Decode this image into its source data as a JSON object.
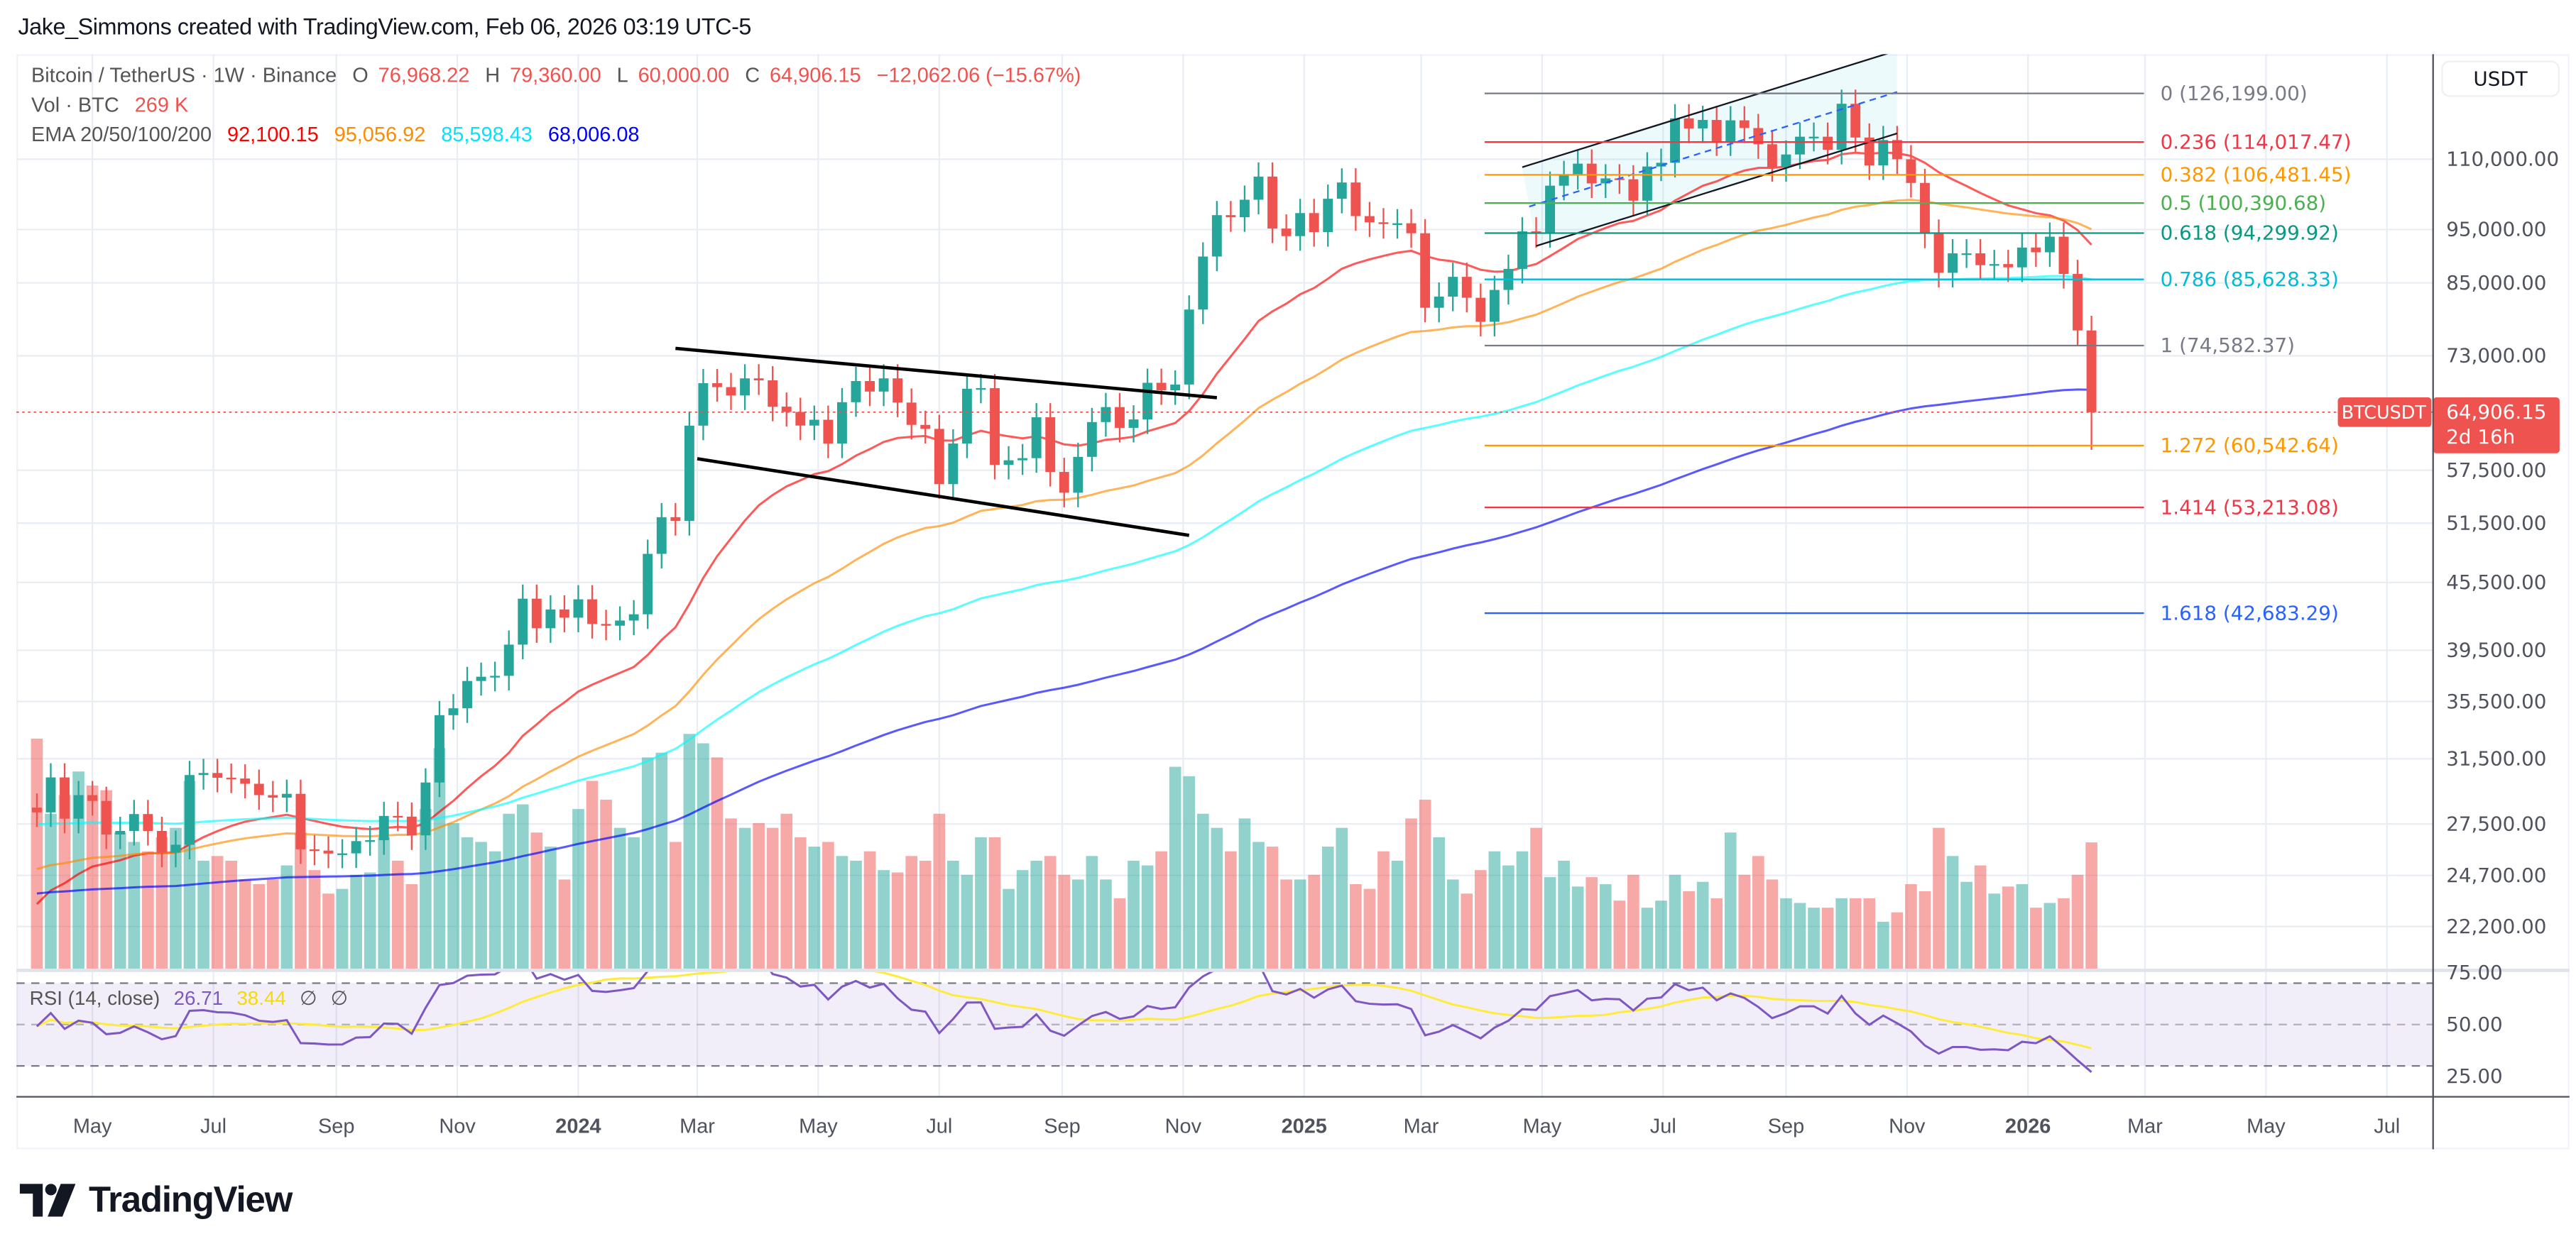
{
  "credit": "Jake_Simmons created with TradingView.com, Feb 06, 2026 03:19 UTC-5",
  "brand": "TradingView",
  "legend": {
    "symbol": "Bitcoin / TetherUS · 1W · Binance",
    "o_label": "O",
    "o": "76,968.22",
    "h_label": "H",
    "h": "79,360.00",
    "l_label": "L",
    "l": "60,000.00",
    "c_label": "C",
    "c": "64,906.15",
    "change": "−12,062.06 (−15.67%)",
    "vol_label": "Vol · BTC",
    "vol": "269 K",
    "ema_label": "EMA 20/50/100/200",
    "ema20": "92,100.15",
    "ema50": "95,056.92",
    "ema100": "85,598.43",
    "ema200": "68,006.08"
  },
  "rsi_legend": {
    "label": "RSI (14, close)",
    "rsi": "26.71",
    "ma": "38.44",
    "n1": "∅",
    "n2": "∅"
  },
  "currency": "USDT",
  "price_tag": {
    "symbol": "BTCUSDT",
    "price": "64,906.15",
    "countdown": "2d 16h"
  },
  "colors": {
    "up": "#26a69a",
    "down": "#ef5350",
    "ema20": "#ff0000",
    "ema50": "#ff8c00",
    "ema100": "#00ffff",
    "ema200": "#0000ff",
    "rsi": "#7e57c2",
    "rsi_ma": "#ffeb3b"
  },
  "chart_data": {
    "type": "candlestick",
    "scale": "log",
    "grid": true,
    "first_week": "2023-04-03",
    "interval": "1W",
    "close": [
      28170,
      30300,
      27800,
      29200,
      28850,
      26900,
      27100,
      28070,
      27100,
      25900,
      26330,
      30450,
      30580,
      30280,
      30230,
      29900,
      29200,
      29050,
      29280,
      26080,
      26010,
      25850,
      25860,
      26530,
      26580,
      27960,
      27920,
      26850,
      29980,
      34500,
      35000,
      37050,
      37380,
      37450,
      39970,
      43990,
      41360,
      43010,
      42280,
      43930,
      41730,
      41580,
      42030,
      42580,
      48300,
      52140,
      51730,
      63110,
      68950,
      68390,
      67210,
      69650,
      69360,
      65660,
      64940,
      63120,
      63890,
      60800,
      66270,
      69260,
      67760,
      69650,
      66220,
      63210,
      62680,
      55860,
      60800,
      68160,
      68250,
      58160,
      58710,
      58970,
      64220,
      57300,
      54870,
      59130,
      63580,
      65600,
      62820,
      63930,
      69010,
      67940,
      68760,
      80400,
      89800,
      97900,
      97470,
      101100,
      106100,
      95200,
      93710,
      98320,
      94500,
      101300,
      104800,
      97700,
      96450,
      96100,
      96250,
      94270,
      80700,
      82600,
      86080,
      82400,
      78370,
      83760,
      87520,
      94640,
      94300,
      104100,
      106450,
      109000,
      104600,
      105700,
      105500,
      100900,
      108350,
      109200,
      119800,
      117300,
      119400,
      114200,
      119300,
      117400,
      113500,
      108200,
      111100,
      115300,
      115300,
      112200,
      123500,
      115100,
      108600,
      114500,
      110000,
      104700,
      94200,
      86800,
      90400,
      90400,
      88200,
      88400,
      87800,
      91500,
      90600,
      93600,
      86600,
      76968.22,
      64906.15
    ],
    "first_open": 28450,
    "last": {
      "open": 76968.22,
      "high": 79360.0,
      "low": 60000.0,
      "close": 64906.15
    },
    "volume_k": [
      490,
      330,
      370,
      420,
      390,
      380,
      290,
      270,
      250,
      280,
      300,
      400,
      230,
      240,
      230,
      190,
      180,
      190,
      220,
      290,
      210,
      160,
      170,
      200,
      205,
      280,
      230,
      180,
      340,
      470,
      310,
      280,
      270,
      250,
      330,
      350,
      290,
      260,
      190,
      340,
      400,
      360,
      300,
      280,
      450,
      460,
      270,
      500,
      480,
      450,
      320,
      300,
      310,
      300,
      330,
      280,
      260,
      270,
      240,
      230,
      250,
      210,
      205,
      240,
      230,
      330,
      230,
      200,
      280,
      280,
      170,
      210,
      230,
      240,
      200,
      190,
      240,
      190,
      150,
      230,
      220,
      250,
      430,
      410,
      330,
      300,
      250,
      320,
      270,
      260,
      190,
      190,
      200,
      260,
      300,
      180,
      170,
      250,
      230,
      320,
      360,
      280,
      190,
      160,
      210,
      250,
      220,
      250,
      300,
      195,
      230,
      175,
      195,
      180,
      145,
      200,
      130,
      145,
      200,
      165,
      185,
      150,
      290,
      200,
      240,
      190,
      150,
      140,
      130,
      130,
      150,
      150,
      150,
      100,
      120,
      180,
      165,
      300,
      240,
      185,
      220,
      160,
      175,
      180,
      130,
      140,
      150,
      200,
      269
    ],
    "price_ticks": [
      "110,000.00",
      "95,000.00",
      "85,000.00",
      "73,000.00",
      "57,500.00",
      "51,500.00",
      "45,500.00",
      "39,500.00",
      "35,500.00",
      "31,500.00",
      "27,500.00",
      "24,700.00",
      "22,200.00"
    ],
    "price_tick_values": [
      110000,
      95000,
      85000,
      73000,
      57500,
      51500,
      45500,
      39500,
      35500,
      31500,
      27500,
      24700,
      22200
    ],
    "rsi_ticks": [
      "75.00",
      "50.00",
      "25.00"
    ],
    "rsi_tick_values": [
      75,
      50,
      25
    ],
    "rsi_bands": [
      70,
      50,
      30
    ],
    "x_ticks": [
      {
        "label": "May",
        "date": "2023-05-01"
      },
      {
        "label": "Jul",
        "date": "2023-07-01"
      },
      {
        "label": "Sep",
        "date": "2023-09-01"
      },
      {
        "label": "Nov",
        "date": "2023-11-01"
      },
      {
        "label": "2024",
        "date": "2024-01-01",
        "bold": true
      },
      {
        "label": "Mar",
        "date": "2024-03-01"
      },
      {
        "label": "May",
        "date": "2024-05-01"
      },
      {
        "label": "Jul",
        "date": "2024-07-01"
      },
      {
        "label": "Sep",
        "date": "2024-09-01"
      },
      {
        "label": "Nov",
        "date": "2024-11-01"
      },
      {
        "label": "2025",
        "date": "2025-01-01",
        "bold": true
      },
      {
        "label": "Mar",
        "date": "2025-03-01"
      },
      {
        "label": "May",
        "date": "2025-05-01"
      },
      {
        "label": "Jul",
        "date": "2025-07-01"
      },
      {
        "label": "Sep",
        "date": "2025-09-01"
      },
      {
        "label": "Nov",
        "date": "2025-11-01"
      },
      {
        "label": "2026",
        "date": "2026-01-01",
        "bold": true
      },
      {
        "label": "Mar",
        "date": "2026-03-01"
      },
      {
        "label": "May",
        "date": "2026-05-01"
      },
      {
        "label": "Jul",
        "date": "2026-07-01"
      }
    ],
    "fibonacci": {
      "start_date": "2025-04-02",
      "levels": [
        {
          "level": "0",
          "price": 126199.0,
          "text": "0 (126,199.00)",
          "color": "#787b86"
        },
        {
          "level": "0.236",
          "price": 114017.47,
          "text": "0.236 (114,017.47)",
          "color": "#f23645"
        },
        {
          "level": "0.382",
          "price": 106481.45,
          "text": "0.382 (106,481.45)",
          "color": "#ff9800"
        },
        {
          "level": "0.5",
          "price": 100390.68,
          "text": "0.5 (100,390.68)",
          "color": "#4caf50"
        },
        {
          "level": "0.618",
          "price": 94299.92,
          "text": "0.618 (94,299.92)",
          "color": "#089981"
        },
        {
          "level": "0.786",
          "price": 85628.33,
          "text": "0.786 (85,628.33)",
          "color": "#00bcd4"
        },
        {
          "level": "1",
          "price": 74582.37,
          "text": "1 (74,582.37)",
          "color": "#787b86"
        },
        {
          "level": "1.272",
          "price": 60542.64,
          "text": "1.272 (60,542.64)",
          "color": "#ff9800"
        },
        {
          "level": "1.414",
          "price": 53213.08,
          "text": "1.414 (53,213.08)",
          "color": "#f23645"
        },
        {
          "level": "1.618",
          "price": 42683.29,
          "text": "1.618 (42,683.29)",
          "color": "#2962ff"
        }
      ]
    },
    "trendlines": [
      {
        "name": "wedge-upper",
        "from": [
          "2024-02-19",
          74150
        ],
        "to": [
          "2024-11-18",
          66900
        ]
      },
      {
        "name": "wedge-lower",
        "from": [
          "2024-03-01",
          58900
        ],
        "to": [
          "2024-11-04",
          50200
        ]
      }
    ],
    "channel": {
      "upper": {
        "from": [
          "2025-04-21",
          108200
        ],
        "to": [
          "2025-10-27",
          138000
        ]
      },
      "lower": {
        "from": [
          "2025-04-28",
          91800
        ],
        "to": [
          "2025-10-27",
          116100
        ]
      }
    }
  }
}
